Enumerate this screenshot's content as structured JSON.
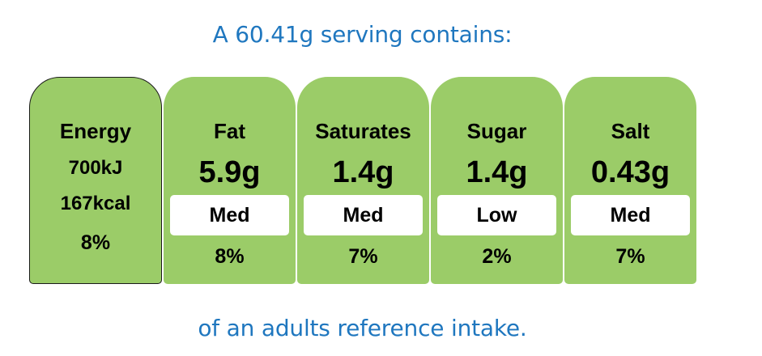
{
  "header": {
    "text": "A 60.41g serving contains:"
  },
  "footer": {
    "text": "of an adults reference intake."
  },
  "energy": {
    "label": "Energy",
    "kj": "700kJ",
    "kcal": "167kcal",
    "percent": "8%"
  },
  "nutrients": [
    {
      "label": "Fat",
      "amount": "5.9g",
      "level": "Med",
      "percent": "8%"
    },
    {
      "label": "Saturates",
      "amount": "1.4g",
      "level": "Med",
      "percent": "7%"
    },
    {
      "label": "Sugar",
      "amount": "1.4g",
      "level": "Low",
      "percent": "2%"
    },
    {
      "label": "Salt",
      "amount": "0.43g",
      "level": "Med",
      "percent": "7%"
    }
  ],
  "colors": {
    "card_green": "#9bcc68",
    "heading_blue": "#1f77bf",
    "level_box": "#ffffff"
  }
}
